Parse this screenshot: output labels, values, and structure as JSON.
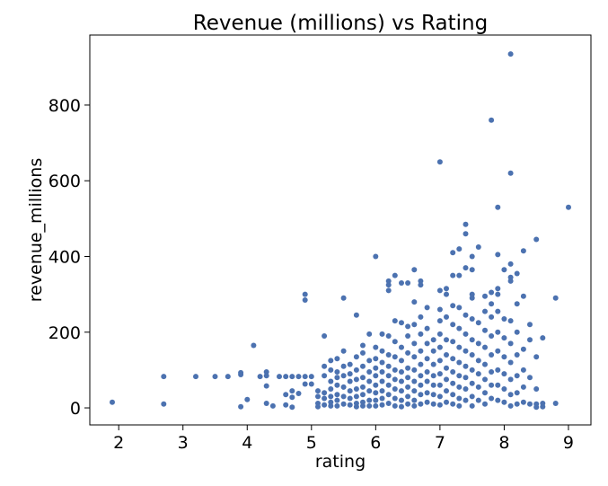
{
  "chart_data": {
    "type": "scatter",
    "title": "Revenue (millions) vs Rating",
    "xlabel": "rating",
    "ylabel": "revenue_millions",
    "xlim": [
      1.55,
      9.35
    ],
    "ylim": [
      -45,
      985
    ],
    "xticks": [
      2,
      3,
      4,
      5,
      6,
      7,
      8,
      9
    ],
    "yticks": [
      0,
      200,
      400,
      600,
      800
    ],
    "grid": false,
    "legend": "none",
    "marker_color": "#4c72b0",
    "points": [
      [
        1.9,
        15
      ],
      [
        2.7,
        10
      ],
      [
        2.7,
        83
      ],
      [
        3.2,
        83
      ],
      [
        3.5,
        83
      ],
      [
        3.7,
        83
      ],
      [
        3.9,
        88
      ],
      [
        3.9,
        93
      ],
      [
        3.9,
        3
      ],
      [
        4.0,
        22
      ],
      [
        4.1,
        165
      ],
      [
        4.2,
        83
      ],
      [
        4.3,
        95
      ],
      [
        4.3,
        85
      ],
      [
        4.3,
        58
      ],
      [
        4.3,
        12
      ],
      [
        4.4,
        5
      ],
      [
        4.5,
        83
      ],
      [
        4.6,
        83
      ],
      [
        4.6,
        35
      ],
      [
        4.6,
        8
      ],
      [
        4.7,
        83
      ],
      [
        4.7,
        45
      ],
      [
        4.7,
        28
      ],
      [
        4.7,
        2
      ],
      [
        4.8,
        83
      ],
      [
        4.8,
        38
      ],
      [
        4.9,
        83
      ],
      [
        4.9,
        300
      ],
      [
        4.9,
        285
      ],
      [
        4.9,
        63
      ],
      [
        5.0,
        83
      ],
      [
        5.0,
        63
      ],
      [
        5.1,
        45
      ],
      [
        5.1,
        30
      ],
      [
        5.1,
        12
      ],
      [
        5.1,
        3
      ],
      [
        5.2,
        110
      ],
      [
        5.2,
        190
      ],
      [
        5.2,
        85
      ],
      [
        5.2,
        40
      ],
      [
        5.2,
        25
      ],
      [
        5.2,
        8
      ],
      [
        5.3,
        125
      ],
      [
        5.3,
        100
      ],
      [
        5.3,
        70
      ],
      [
        5.3,
        50
      ],
      [
        5.3,
        30
      ],
      [
        5.3,
        15
      ],
      [
        5.3,
        5
      ],
      [
        5.4,
        130
      ],
      [
        5.4,
        95
      ],
      [
        5.4,
        80
      ],
      [
        5.4,
        60
      ],
      [
        5.4,
        35
      ],
      [
        5.4,
        20
      ],
      [
        5.4,
        5
      ],
      [
        5.5,
        290
      ],
      [
        5.5,
        150
      ],
      [
        5.5,
        110
      ],
      [
        5.5,
        85
      ],
      [
        5.5,
        55
      ],
      [
        5.5,
        30
      ],
      [
        5.5,
        10
      ],
      [
        5.6,
        115
      ],
      [
        5.6,
        90
      ],
      [
        5.6,
        70
      ],
      [
        5.6,
        45
      ],
      [
        5.6,
        25
      ],
      [
        5.6,
        8
      ],
      [
        5.7,
        245
      ],
      [
        5.7,
        135
      ],
      [
        5.7,
        100
      ],
      [
        5.7,
        75
      ],
      [
        5.7,
        50
      ],
      [
        5.7,
        30
      ],
      [
        5.7,
        12
      ],
      [
        5.7,
        3
      ],
      [
        5.8,
        165
      ],
      [
        5.8,
        145
      ],
      [
        5.8,
        110
      ],
      [
        5.8,
        80
      ],
      [
        5.8,
        55
      ],
      [
        5.8,
        35
      ],
      [
        5.8,
        15
      ],
      [
        5.8,
        5
      ],
      [
        5.9,
        195
      ],
      [
        5.9,
        125
      ],
      [
        5.9,
        95
      ],
      [
        5.9,
        70
      ],
      [
        5.9,
        45
      ],
      [
        5.9,
        20
      ],
      [
        5.9,
        5
      ],
      [
        6.0,
        400
      ],
      [
        6.0,
        160
      ],
      [
        6.0,
        130
      ],
      [
        6.0,
        105
      ],
      [
        6.0,
        85
      ],
      [
        6.0,
        60
      ],
      [
        6.0,
        40
      ],
      [
        6.0,
        20
      ],
      [
        6.0,
        5
      ],
      [
        6.1,
        195
      ],
      [
        6.1,
        150
      ],
      [
        6.1,
        120
      ],
      [
        6.1,
        95
      ],
      [
        6.1,
        70
      ],
      [
        6.1,
        45
      ],
      [
        6.1,
        25
      ],
      [
        6.1,
        8
      ],
      [
        6.2,
        335
      ],
      [
        6.2,
        325
      ],
      [
        6.2,
        310
      ],
      [
        6.2,
        190
      ],
      [
        6.2,
        140
      ],
      [
        6.2,
        110
      ],
      [
        6.2,
        85
      ],
      [
        6.2,
        60
      ],
      [
        6.2,
        35
      ],
      [
        6.2,
        12
      ],
      [
        6.3,
        350
      ],
      [
        6.3,
        230
      ],
      [
        6.3,
        175
      ],
      [
        6.3,
        135
      ],
      [
        6.3,
        100
      ],
      [
        6.3,
        75
      ],
      [
        6.3,
        50
      ],
      [
        6.3,
        25
      ],
      [
        6.3,
        5
      ],
      [
        6.4,
        330
      ],
      [
        6.4,
        225
      ],
      [
        6.4,
        160
      ],
      [
        6.4,
        125
      ],
      [
        6.4,
        95
      ],
      [
        6.4,
        70
      ],
      [
        6.4,
        45
      ],
      [
        6.4,
        20
      ],
      [
        6.4,
        3
      ],
      [
        6.5,
        330
      ],
      [
        6.5,
        215
      ],
      [
        6.5,
        190
      ],
      [
        6.5,
        145
      ],
      [
        6.5,
        105
      ],
      [
        6.5,
        80
      ],
      [
        6.5,
        55
      ],
      [
        6.5,
        30
      ],
      [
        6.5,
        10
      ],
      [
        6.6,
        365
      ],
      [
        6.6,
        280
      ],
      [
        6.6,
        220
      ],
      [
        6.6,
        170
      ],
      [
        6.6,
        135
      ],
      [
        6.6,
        100
      ],
      [
        6.6,
        70
      ],
      [
        6.6,
        45
      ],
      [
        6.6,
        20
      ],
      [
        6.6,
        5
      ],
      [
        6.7,
        335
      ],
      [
        6.7,
        325
      ],
      [
        6.7,
        240
      ],
      [
        6.7,
        195
      ],
      [
        6.7,
        150
      ],
      [
        6.7,
        115
      ],
      [
        6.7,
        85
      ],
      [
        6.7,
        60
      ],
      [
        6.7,
        35
      ],
      [
        6.7,
        10
      ],
      [
        6.8,
        265
      ],
      [
        6.8,
        210
      ],
      [
        6.8,
        170
      ],
      [
        6.8,
        130
      ],
      [
        6.8,
        95
      ],
      [
        6.8,
        70
      ],
      [
        6.8,
        40
      ],
      [
        6.8,
        15
      ],
      [
        6.9,
        180
      ],
      [
        6.9,
        150
      ],
      [
        6.9,
        115
      ],
      [
        6.9,
        85
      ],
      [
        6.9,
        60
      ],
      [
        6.9,
        35
      ],
      [
        6.9,
        10
      ],
      [
        7.0,
        650
      ],
      [
        7.0,
        310
      ],
      [
        7.0,
        260
      ],
      [
        7.0,
        230
      ],
      [
        7.0,
        195
      ],
      [
        7.0,
        160
      ],
      [
        7.0,
        125
      ],
      [
        7.0,
        90
      ],
      [
        7.0,
        60
      ],
      [
        7.0,
        30
      ],
      [
        7.0,
        8
      ],
      [
        7.1,
        315
      ],
      [
        7.1,
        300
      ],
      [
        7.1,
        240
      ],
      [
        7.1,
        180
      ],
      [
        7.1,
        140
      ],
      [
        7.1,
        105
      ],
      [
        7.1,
        75
      ],
      [
        7.1,
        45
      ],
      [
        7.1,
        15
      ],
      [
        7.2,
        410
      ],
      [
        7.2,
        350
      ],
      [
        7.2,
        270
      ],
      [
        7.2,
        220
      ],
      [
        7.2,
        175
      ],
      [
        7.2,
        130
      ],
      [
        7.2,
        95
      ],
      [
        7.2,
        65
      ],
      [
        7.2,
        35
      ],
      [
        7.2,
        10
      ],
      [
        7.3,
        420
      ],
      [
        7.3,
        350
      ],
      [
        7.3,
        265
      ],
      [
        7.3,
        210
      ],
      [
        7.3,
        160
      ],
      [
        7.3,
        120
      ],
      [
        7.3,
        85
      ],
      [
        7.3,
        55
      ],
      [
        7.3,
        25
      ],
      [
        7.3,
        5
      ],
      [
        7.4,
        485
      ],
      [
        7.4,
        460
      ],
      [
        7.4,
        370
      ],
      [
        7.4,
        245
      ],
      [
        7.4,
        195
      ],
      [
        7.4,
        150
      ],
      [
        7.4,
        110
      ],
      [
        7.4,
        80
      ],
      [
        7.4,
        50
      ],
      [
        7.4,
        20
      ],
      [
        7.5,
        400
      ],
      [
        7.5,
        365
      ],
      [
        7.5,
        300
      ],
      [
        7.5,
        290
      ],
      [
        7.5,
        235
      ],
      [
        7.5,
        180
      ],
      [
        7.5,
        140
      ],
      [
        7.5,
        100
      ],
      [
        7.5,
        65
      ],
      [
        7.5,
        30
      ],
      [
        7.5,
        5
      ],
      [
        7.6,
        425
      ],
      [
        7.6,
        225
      ],
      [
        7.6,
        170
      ],
      [
        7.6,
        125
      ],
      [
        7.6,
        90
      ],
      [
        7.6,
        55
      ],
      [
        7.6,
        20
      ],
      [
        7.7,
        295
      ],
      [
        7.7,
        255
      ],
      [
        7.7,
        205
      ],
      [
        7.7,
        160
      ],
      [
        7.7,
        115
      ],
      [
        7.7,
        75
      ],
      [
        7.7,
        40
      ],
      [
        7.7,
        10
      ],
      [
        7.8,
        760
      ],
      [
        7.8,
        305
      ],
      [
        7.8,
        275
      ],
      [
        7.8,
        240
      ],
      [
        7.8,
        190
      ],
      [
        7.8,
        140
      ],
      [
        7.8,
        95
      ],
      [
        7.8,
        60
      ],
      [
        7.8,
        25
      ],
      [
        7.9,
        530
      ],
      [
        7.9,
        405
      ],
      [
        7.9,
        315
      ],
      [
        7.9,
        300
      ],
      [
        7.9,
        255
      ],
      [
        7.9,
        200
      ],
      [
        7.9,
        150
      ],
      [
        7.9,
        100
      ],
      [
        7.9,
        60
      ],
      [
        7.9,
        20
      ],
      [
        8.0,
        365
      ],
      [
        8.0,
        235
      ],
      [
        8.0,
        185
      ],
      [
        8.0,
        135
      ],
      [
        8.0,
        90
      ],
      [
        8.0,
        50
      ],
      [
        8.0,
        15
      ],
      [
        8.1,
        935
      ],
      [
        8.1,
        620
      ],
      [
        8.1,
        380
      ],
      [
        8.1,
        345
      ],
      [
        8.1,
        335
      ],
      [
        8.1,
        230
      ],
      [
        8.1,
        170
      ],
      [
        8.1,
        120
      ],
      [
        8.1,
        75
      ],
      [
        8.1,
        35
      ],
      [
        8.1,
        5
      ],
      [
        8.2,
        355
      ],
      [
        8.2,
        275
      ],
      [
        8.2,
        200
      ],
      [
        8.2,
        140
      ],
      [
        8.2,
        85
      ],
      [
        8.2,
        40
      ],
      [
        8.2,
        10
      ],
      [
        8.3,
        415
      ],
      [
        8.3,
        295
      ],
      [
        8.3,
        155
      ],
      [
        8.3,
        100
      ],
      [
        8.3,
        55
      ],
      [
        8.3,
        15
      ],
      [
        8.4,
        220
      ],
      [
        8.4,
        180
      ],
      [
        8.4,
        80
      ],
      [
        8.4,
        10
      ],
      [
        8.5,
        445
      ],
      [
        8.5,
        135
      ],
      [
        8.5,
        50
      ],
      [
        8.5,
        10
      ],
      [
        8.5,
        2
      ],
      [
        8.6,
        185
      ],
      [
        8.6,
        12
      ],
      [
        8.6,
        3
      ],
      [
        8.8,
        290
      ],
      [
        8.8,
        12
      ],
      [
        9.0,
        530
      ]
    ]
  }
}
